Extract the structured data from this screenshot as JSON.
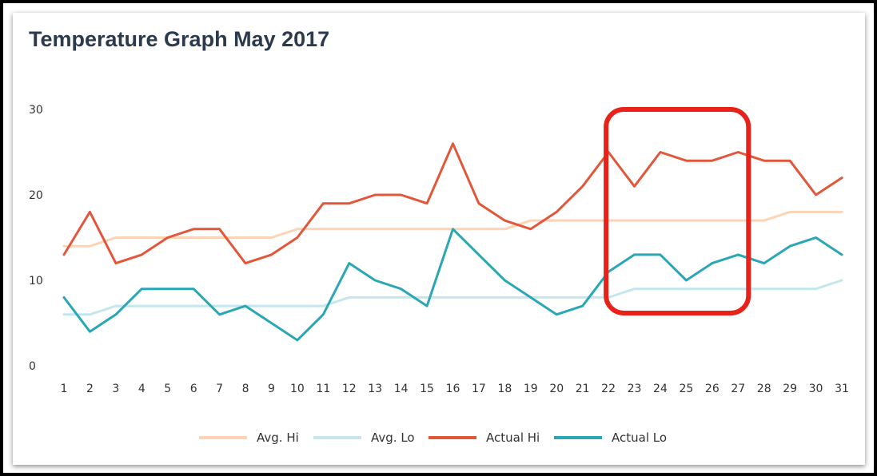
{
  "chart_data": {
    "type": "line",
    "title": "Temperature Graph May 2017",
    "x": [
      1,
      2,
      3,
      4,
      5,
      6,
      7,
      8,
      9,
      10,
      11,
      12,
      13,
      14,
      15,
      16,
      17,
      18,
      19,
      20,
      21,
      22,
      23,
      24,
      25,
      26,
      27,
      28,
      29,
      30,
      31
    ],
    "ylim": [
      0,
      30
    ],
    "yticks": [
      0,
      10,
      20,
      30
    ],
    "grid": false,
    "legend_position": "bottom",
    "series": [
      {
        "name": "Avg. Hi",
        "color": "#fcd3b4",
        "values": [
          14,
          14,
          15,
          15,
          15,
          15,
          15,
          15,
          15,
          16,
          16,
          16,
          16,
          16,
          16,
          16,
          16,
          16,
          17,
          17,
          17,
          17,
          17,
          17,
          17,
          17,
          17,
          17,
          18,
          18,
          18
        ]
      },
      {
        "name": "Avg. Lo",
        "color": "#c4e7ee",
        "values": [
          6,
          6,
          7,
          7,
          7,
          7,
          7,
          7,
          7,
          7,
          7,
          8,
          8,
          8,
          8,
          8,
          8,
          8,
          8,
          8,
          8,
          8,
          9,
          9,
          9,
          9,
          9,
          9,
          9,
          9,
          10
        ]
      },
      {
        "name": "Actual Hi",
        "color": "#e2573a",
        "values": [
          13,
          18,
          12,
          13,
          15,
          16,
          16,
          12,
          13,
          15,
          19,
          19,
          20,
          20,
          19,
          26,
          19,
          17,
          16,
          18,
          21,
          25,
          21,
          25,
          24,
          24,
          25,
          24,
          24,
          20,
          22
        ]
      },
      {
        "name": "Actual Lo",
        "color": "#2aa7b4",
        "values": [
          8,
          4,
          6,
          9,
          9,
          9,
          6,
          7,
          5,
          3,
          6,
          12,
          10,
          9,
          7,
          16,
          13,
          10,
          8,
          6,
          7,
          11,
          13,
          13,
          10,
          12,
          13,
          12,
          14,
          15,
          13
        ]
      }
    ],
    "annotation": {
      "type": "highlight-box",
      "x_range": [
        22,
        27
      ],
      "color": "#e8221b"
    }
  }
}
